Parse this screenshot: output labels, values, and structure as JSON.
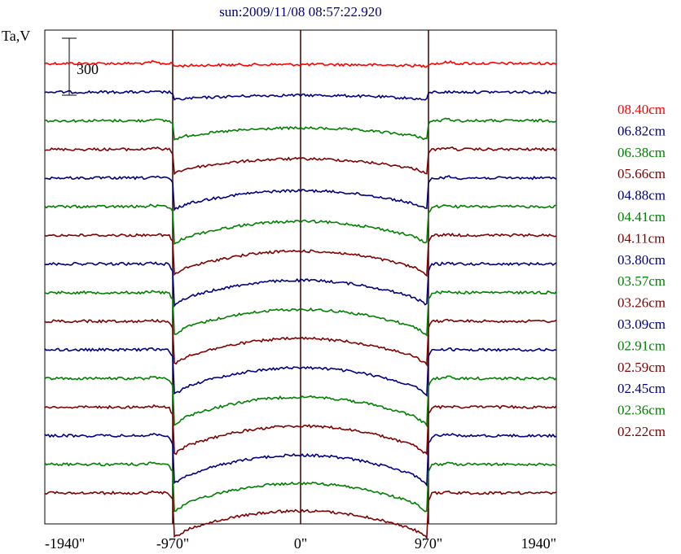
{
  "chart_data": {
    "type": "line",
    "title": "sun:2009/11/08 08:57:22.920",
    "ylabel": "Ta,V",
    "scale_bar_label": "300",
    "x_ticks": [
      "-1940\"",
      "-970\"",
      "0\"",
      "970\"",
      "1940\""
    ],
    "xlim": [
      -1940,
      1940
    ],
    "grid_lines_at": [
      -970,
      0,
      970
    ],
    "legend_position": "right",
    "series": [
      {
        "name": "08.40cm",
        "color": "#ff0000",
        "depth": 0.05,
        "bump": 10
      },
      {
        "name": "06.82cm",
        "color": "#000080",
        "depth": 0.15,
        "bump": 0
      },
      {
        "name": "06.38cm",
        "color": "#008000",
        "depth": 0.35,
        "bump": 12
      },
      {
        "name": "05.66cm",
        "color": "#800000",
        "depth": 0.45,
        "bump": 12
      },
      {
        "name": "04.88cm",
        "color": "#000080",
        "depth": 0.6,
        "bump": 8
      },
      {
        "name": "04.41cm",
        "color": "#008000",
        "depth": 0.7,
        "bump": 8
      },
      {
        "name": "04.11cm",
        "color": "#800000",
        "depth": 0.75,
        "bump": 6
      },
      {
        "name": "03.80cm",
        "color": "#000080",
        "depth": 0.78,
        "bump": 6
      },
      {
        "name": "03.57cm",
        "color": "#008000",
        "depth": 0.8,
        "bump": 6
      },
      {
        "name": "03.26cm",
        "color": "#800000",
        "depth": 0.82,
        "bump": 6
      },
      {
        "name": "03.09cm",
        "color": "#000080",
        "depth": 0.85,
        "bump": 6
      },
      {
        "name": "02.91cm",
        "color": "#008000",
        "depth": 0.88,
        "bump": 8
      },
      {
        "name": "02.59cm",
        "color": "#800000",
        "depth": 0.9,
        "bump": 6
      },
      {
        "name": "02.45cm",
        "color": "#000080",
        "depth": 0.92,
        "bump": 10
      },
      {
        "name": "02.36cm",
        "color": "#008000",
        "depth": 0.9,
        "bump": 8
      },
      {
        "name": "02.22cm",
        "color": "#800000",
        "depth": 0.85,
        "bump": 6
      }
    ]
  }
}
